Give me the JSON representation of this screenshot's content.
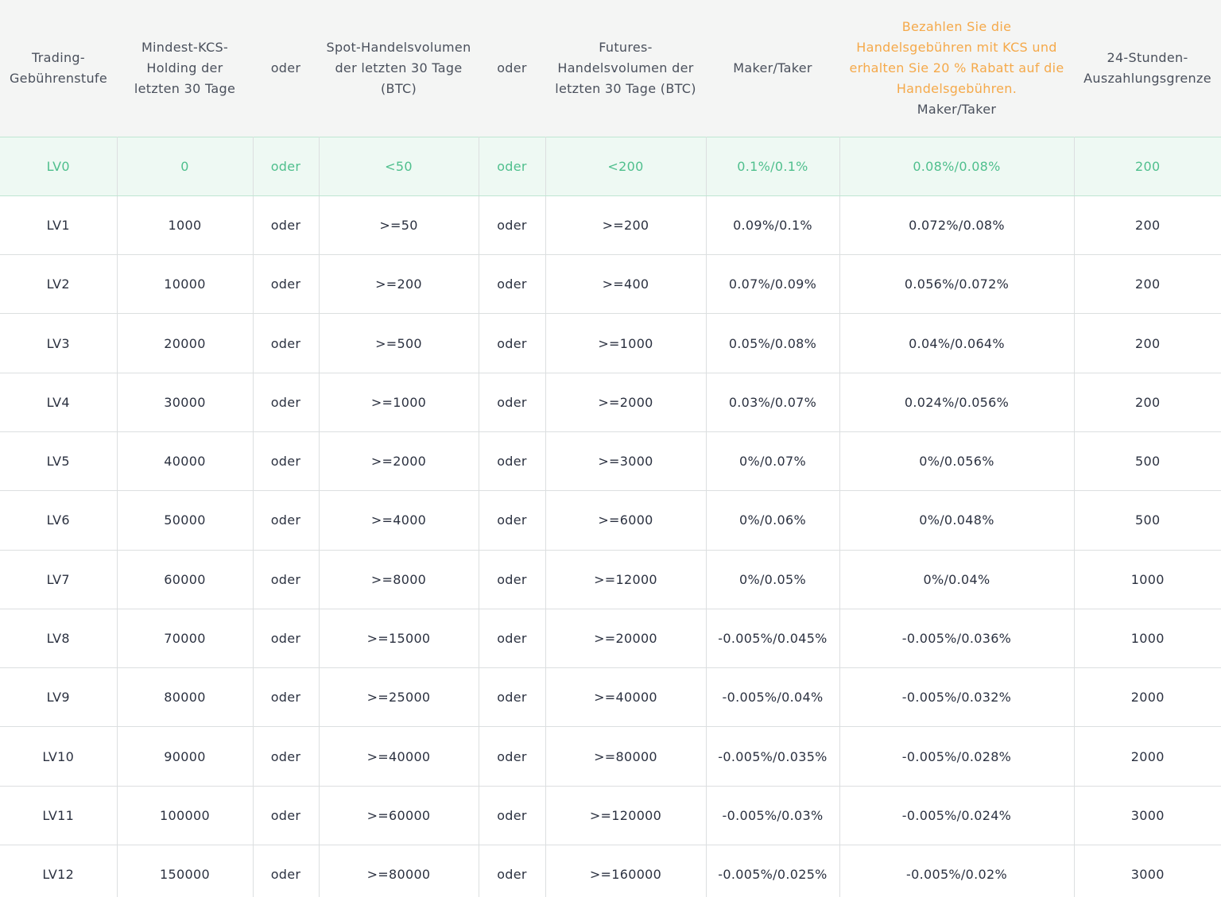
{
  "table": {
    "header": [
      "Trading-Gebührenstufe",
      "Mindest-KCS-Holding der letzten 30 Tage",
      "oder",
      "Spot-Handelsvolumen der letzten 30 Tage (BTC)",
      "oder",
      "Futures-Handelsvolumen der letzten 30 Tage (BTC)",
      "Maker/Taker",
      {
        "note": "Bezahlen Sie die Handelsgebühren mit KCS und erhalten Sie 20 % Rabatt auf die Handelsgebühren.",
        "label": "Maker/Taker"
      },
      "24-Stunden-Auszahlungsgrenze"
    ],
    "rows": [
      [
        "LV0",
        "0",
        "oder",
        "<50",
        "oder",
        "<200",
        "0.1%/0.1%",
        "0.08%/0.08%",
        "200"
      ],
      [
        "LV1",
        "1000",
        "oder",
        ">=50",
        "oder",
        ">=200",
        "0.09%/0.1%",
        "0.072%/0.08%",
        "200"
      ],
      [
        "LV2",
        "10000",
        "oder",
        ">=200",
        "oder",
        ">=400",
        "0.07%/0.09%",
        "0.056%/0.072%",
        "200"
      ],
      [
        "LV3",
        "20000",
        "oder",
        ">=500",
        "oder",
        ">=1000",
        "0.05%/0.08%",
        "0.04%/0.064%",
        "200"
      ],
      [
        "LV4",
        "30000",
        "oder",
        ">=1000",
        "oder",
        ">=2000",
        "0.03%/0.07%",
        "0.024%/0.056%",
        "200"
      ],
      [
        "LV5",
        "40000",
        "oder",
        ">=2000",
        "oder",
        ">=3000",
        "0%/0.07%",
        "0%/0.056%",
        "500"
      ],
      [
        "LV6",
        "50000",
        "oder",
        ">=4000",
        "oder",
        ">=6000",
        "0%/0.06%",
        "0%/0.048%",
        "500"
      ],
      [
        "LV7",
        "60000",
        "oder",
        ">=8000",
        "oder",
        ">=12000",
        "0%/0.05%",
        "0%/0.04%",
        "1000"
      ],
      [
        "LV8",
        "70000",
        "oder",
        ">=15000",
        "oder",
        ">=20000",
        "-0.005%/0.045%",
        "-0.005%/0.036%",
        "1000"
      ],
      [
        "LV9",
        "80000",
        "oder",
        ">=25000",
        "oder",
        ">=40000",
        "-0.005%/0.04%",
        "-0.005%/0.032%",
        "2000"
      ],
      [
        "LV10",
        "90000",
        "oder",
        ">=40000",
        "oder",
        ">=80000",
        "-0.005%/0.035%",
        "-0.005%/0.028%",
        "2000"
      ],
      [
        "LV11",
        "100000",
        "oder",
        ">=60000",
        "oder",
        ">=120000",
        "-0.005%/0.03%",
        "-0.005%/0.024%",
        "3000"
      ],
      [
        "LV12",
        "150000",
        "oder",
        ">=80000",
        "oder",
        ">=160000",
        "-0.005%/0.025%",
        "-0.005%/0.02%",
        "3000"
      ]
    ]
  }
}
